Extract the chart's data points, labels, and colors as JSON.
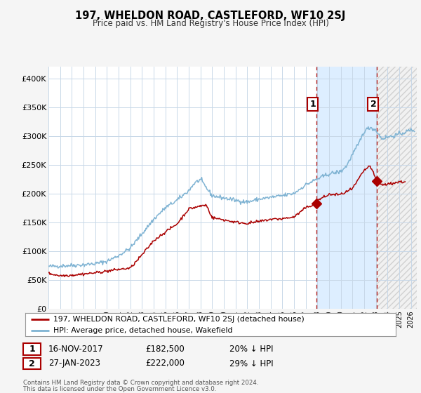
{
  "title": "197, WHELDON ROAD, CASTLEFORD, WF10 2SJ",
  "subtitle": "Price paid vs. HM Land Registry's House Price Index (HPI)",
  "ylim": [
    0,
    420000
  ],
  "xlim_start": 1995.0,
  "xlim_end": 2026.5,
  "plot_bg_color": "#ffffff",
  "grid_color": "#c8d8e8",
  "legend_label_red": "197, WHELDON ROAD, CASTLEFORD, WF10 2SJ (detached house)",
  "legend_label_blue": "HPI: Average price, detached house, Wakefield",
  "marker1_x": 2017.9,
  "marker1_y": 182500,
  "marker2_x": 2023.08,
  "marker2_y": 222000,
  "marker1_date": "16-NOV-2017",
  "marker1_price": "£182,500",
  "marker1_hpi": "20% ↓ HPI",
  "marker2_date": "27-JAN-2023",
  "marker2_price": "£222,000",
  "marker2_hpi": "29% ↓ HPI",
  "footer1": "Contains HM Land Registry data © Crown copyright and database right 2024.",
  "footer2": "This data is licensed under the Open Government Licence v3.0.",
  "red_color": "#aa0000",
  "blue_color": "#7fb3d3",
  "shade_color": "#ddeeff",
  "hatch_color": "#cccccc",
  "yticks": [
    0,
    50000,
    100000,
    150000,
    200000,
    250000,
    300000,
    350000,
    400000
  ],
  "ytick_labels": [
    "£0",
    "£50K",
    "£100K",
    "£150K",
    "£200K",
    "£250K",
    "£300K",
    "£350K",
    "£400K"
  ]
}
